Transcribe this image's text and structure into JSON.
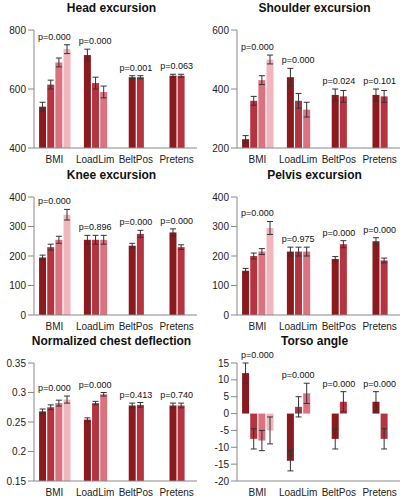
{
  "chart_data": [
    {
      "type": "bar",
      "title": "Head excursion",
      "categories": [
        "BMI",
        "LoadLim",
        "BeltPos",
        "Pretens"
      ],
      "values": [
        [
          540,
          615,
          690,
          735
        ],
        [
          715,
          620,
          590
        ],
        [
          640,
          640
        ],
        [
          645,
          645
        ]
      ],
      "errors": [
        [
          15,
          15,
          15,
          15
        ],
        [
          20,
          20,
          20
        ],
        [
          5,
          5
        ],
        [
          5,
          5
        ]
      ],
      "colors": [
        [
          "#8b1a1f",
          "#b53441",
          "#d9737f",
          "#f0b6bd"
        ],
        [
          "#8b1a1f",
          "#b53441",
          "#d9737f"
        ],
        [
          "#8b1a1f",
          "#b53441"
        ],
        [
          "#8b1a1f",
          "#b53441"
        ]
      ],
      "annotations": [
        "p=0.000",
        "p=0.000",
        "p=0.001",
        "p=0.063"
      ],
      "ylim": [
        400,
        800
      ],
      "yticks": [
        400,
        600,
        800
      ]
    },
    {
      "type": "bar",
      "title": "Shoulder excursion",
      "categories": [
        "BMI",
        "LoadLim",
        "BeltPos",
        "Pretens"
      ],
      "values": [
        [
          230,
          360,
          430,
          500
        ],
        [
          440,
          360,
          330
        ],
        [
          380,
          375
        ],
        [
          380,
          375
        ]
      ],
      "errors": [
        [
          12,
          15,
          15,
          15
        ],
        [
          30,
          25,
          25
        ],
        [
          20,
          20
        ],
        [
          20,
          20
        ]
      ],
      "colors": [
        [
          "#8b1a1f",
          "#b53441",
          "#d9737f",
          "#f0b6bd"
        ],
        [
          "#8b1a1f",
          "#b53441",
          "#d9737f"
        ],
        [
          "#8b1a1f",
          "#b53441"
        ],
        [
          "#8b1a1f",
          "#b53441"
        ]
      ],
      "annotations": [
        "p=0.000",
        "p=0.000",
        "p=0.024",
        "p=0.101"
      ],
      "ylim": [
        200,
        600
      ],
      "yticks": [
        200,
        400,
        600
      ]
    },
    {
      "type": "bar",
      "title": "Knee excursion",
      "categories": [
        "BMI",
        "LoadLim",
        "BeltPos",
        "Pretens"
      ],
      "values": [
        [
          195,
          230,
          255,
          340
        ],
        [
          255,
          255,
          255
        ],
        [
          235,
          275
        ],
        [
          280,
          230
        ]
      ],
      "errors": [
        [
          8,
          10,
          12,
          18
        ],
        [
          15,
          15,
          15
        ],
        [
          8,
          12
        ],
        [
          12,
          8
        ]
      ],
      "colors": [
        [
          "#8b1a1f",
          "#b53441",
          "#d9737f",
          "#f0b6bd"
        ],
        [
          "#8b1a1f",
          "#b53441",
          "#d9737f"
        ],
        [
          "#8b1a1f",
          "#b53441"
        ],
        [
          "#8b1a1f",
          "#b53441"
        ]
      ],
      "annotations": [
        "p=0.000",
        "p=0.896",
        "p=0.000",
        "p=0.000"
      ],
      "ylim": [
        0,
        400
      ],
      "yticks": [
        0,
        100,
        200,
        300,
        400
      ]
    },
    {
      "type": "bar",
      "title": "Pelvis excursion",
      "categories": [
        "BMI",
        "LoadLim",
        "BeltPos",
        "Pretens"
      ],
      "values": [
        [
          150,
          200,
          215,
          295
        ],
        [
          215,
          215,
          215
        ],
        [
          190,
          240
        ],
        [
          250,
          185
        ]
      ],
      "errors": [
        [
          8,
          10,
          10,
          22
        ],
        [
          15,
          15,
          15
        ],
        [
          8,
          12
        ],
        [
          12,
          8
        ]
      ],
      "colors": [
        [
          "#8b1a1f",
          "#b53441",
          "#d9737f",
          "#f0b6bd"
        ],
        [
          "#8b1a1f",
          "#b53441",
          "#d9737f"
        ],
        [
          "#8b1a1f",
          "#b53441"
        ],
        [
          "#8b1a1f",
          "#b53441"
        ]
      ],
      "annotations": [
        "p=0.000",
        "p=0.975",
        "p=0.000",
        "p=0.000"
      ],
      "ylim": [
        0,
        400
      ],
      "yticks": [
        0,
        100,
        200,
        300,
        400
      ]
    },
    {
      "type": "bar",
      "title": "Normalized chest deflection",
      "categories": [
        "BMI",
        "LoadLim",
        "BeltPos",
        "Pretens"
      ],
      "values": [
        [
          0.268,
          0.275,
          0.282,
          0.288
        ],
        [
          0.254,
          0.282,
          0.297
        ],
        [
          0.278,
          0.279
        ],
        [
          0.278,
          0.278
        ]
      ],
      "errors": [
        [
          0.004,
          0.004,
          0.005,
          0.006
        ],
        [
          0.003,
          0.003,
          0.003
        ],
        [
          0.004,
          0.004
        ],
        [
          0.004,
          0.004
        ]
      ],
      "colors": [
        [
          "#8b1a1f",
          "#b53441",
          "#d9737f",
          "#f0b6bd"
        ],
        [
          "#8b1a1f",
          "#b53441",
          "#d9737f"
        ],
        [
          "#8b1a1f",
          "#b53441"
        ],
        [
          "#8b1a1f",
          "#b53441"
        ]
      ],
      "annotations": [
        "p=0.000",
        "p=0.000",
        "p=0.413",
        "p=0.740"
      ],
      "ylim": [
        0.15,
        0.35
      ],
      "yticks": [
        0.15,
        0.2,
        0.25,
        0.3,
        0.35
      ]
    },
    {
      "type": "bar",
      "title": "Torso angle",
      "categories": [
        "BMI",
        "LoadLim",
        "BeltPos",
        "Pretens"
      ],
      "values": [
        [
          12,
          -7.5,
          -8,
          -5
        ],
        [
          -14,
          2,
          6
        ],
        [
          -7.5,
          3.5
        ],
        [
          3.5,
          -7.5
        ]
      ],
      "errors": [
        [
          3,
          3,
          3,
          4
        ],
        [
          3,
          3,
          3
        ],
        [
          3,
          3
        ],
        [
          3,
          3
        ]
      ],
      "colors": [
        [
          "#8b1a1f",
          "#b53441",
          "#d9737f",
          "#f0b6bd"
        ],
        [
          "#8b1a1f",
          "#b53441",
          "#d9737f"
        ],
        [
          "#8b1a1f",
          "#b53441"
        ],
        [
          "#8b1a1f",
          "#b53441"
        ]
      ],
      "annotations": [
        "p=0.000",
        "p=0.000",
        "p=0.000",
        "p=0.000"
      ],
      "ylim": [
        -20,
        15
      ],
      "yticks": [
        -20,
        -15,
        -10,
        -5,
        0,
        5,
        10,
        15
      ]
    }
  ]
}
